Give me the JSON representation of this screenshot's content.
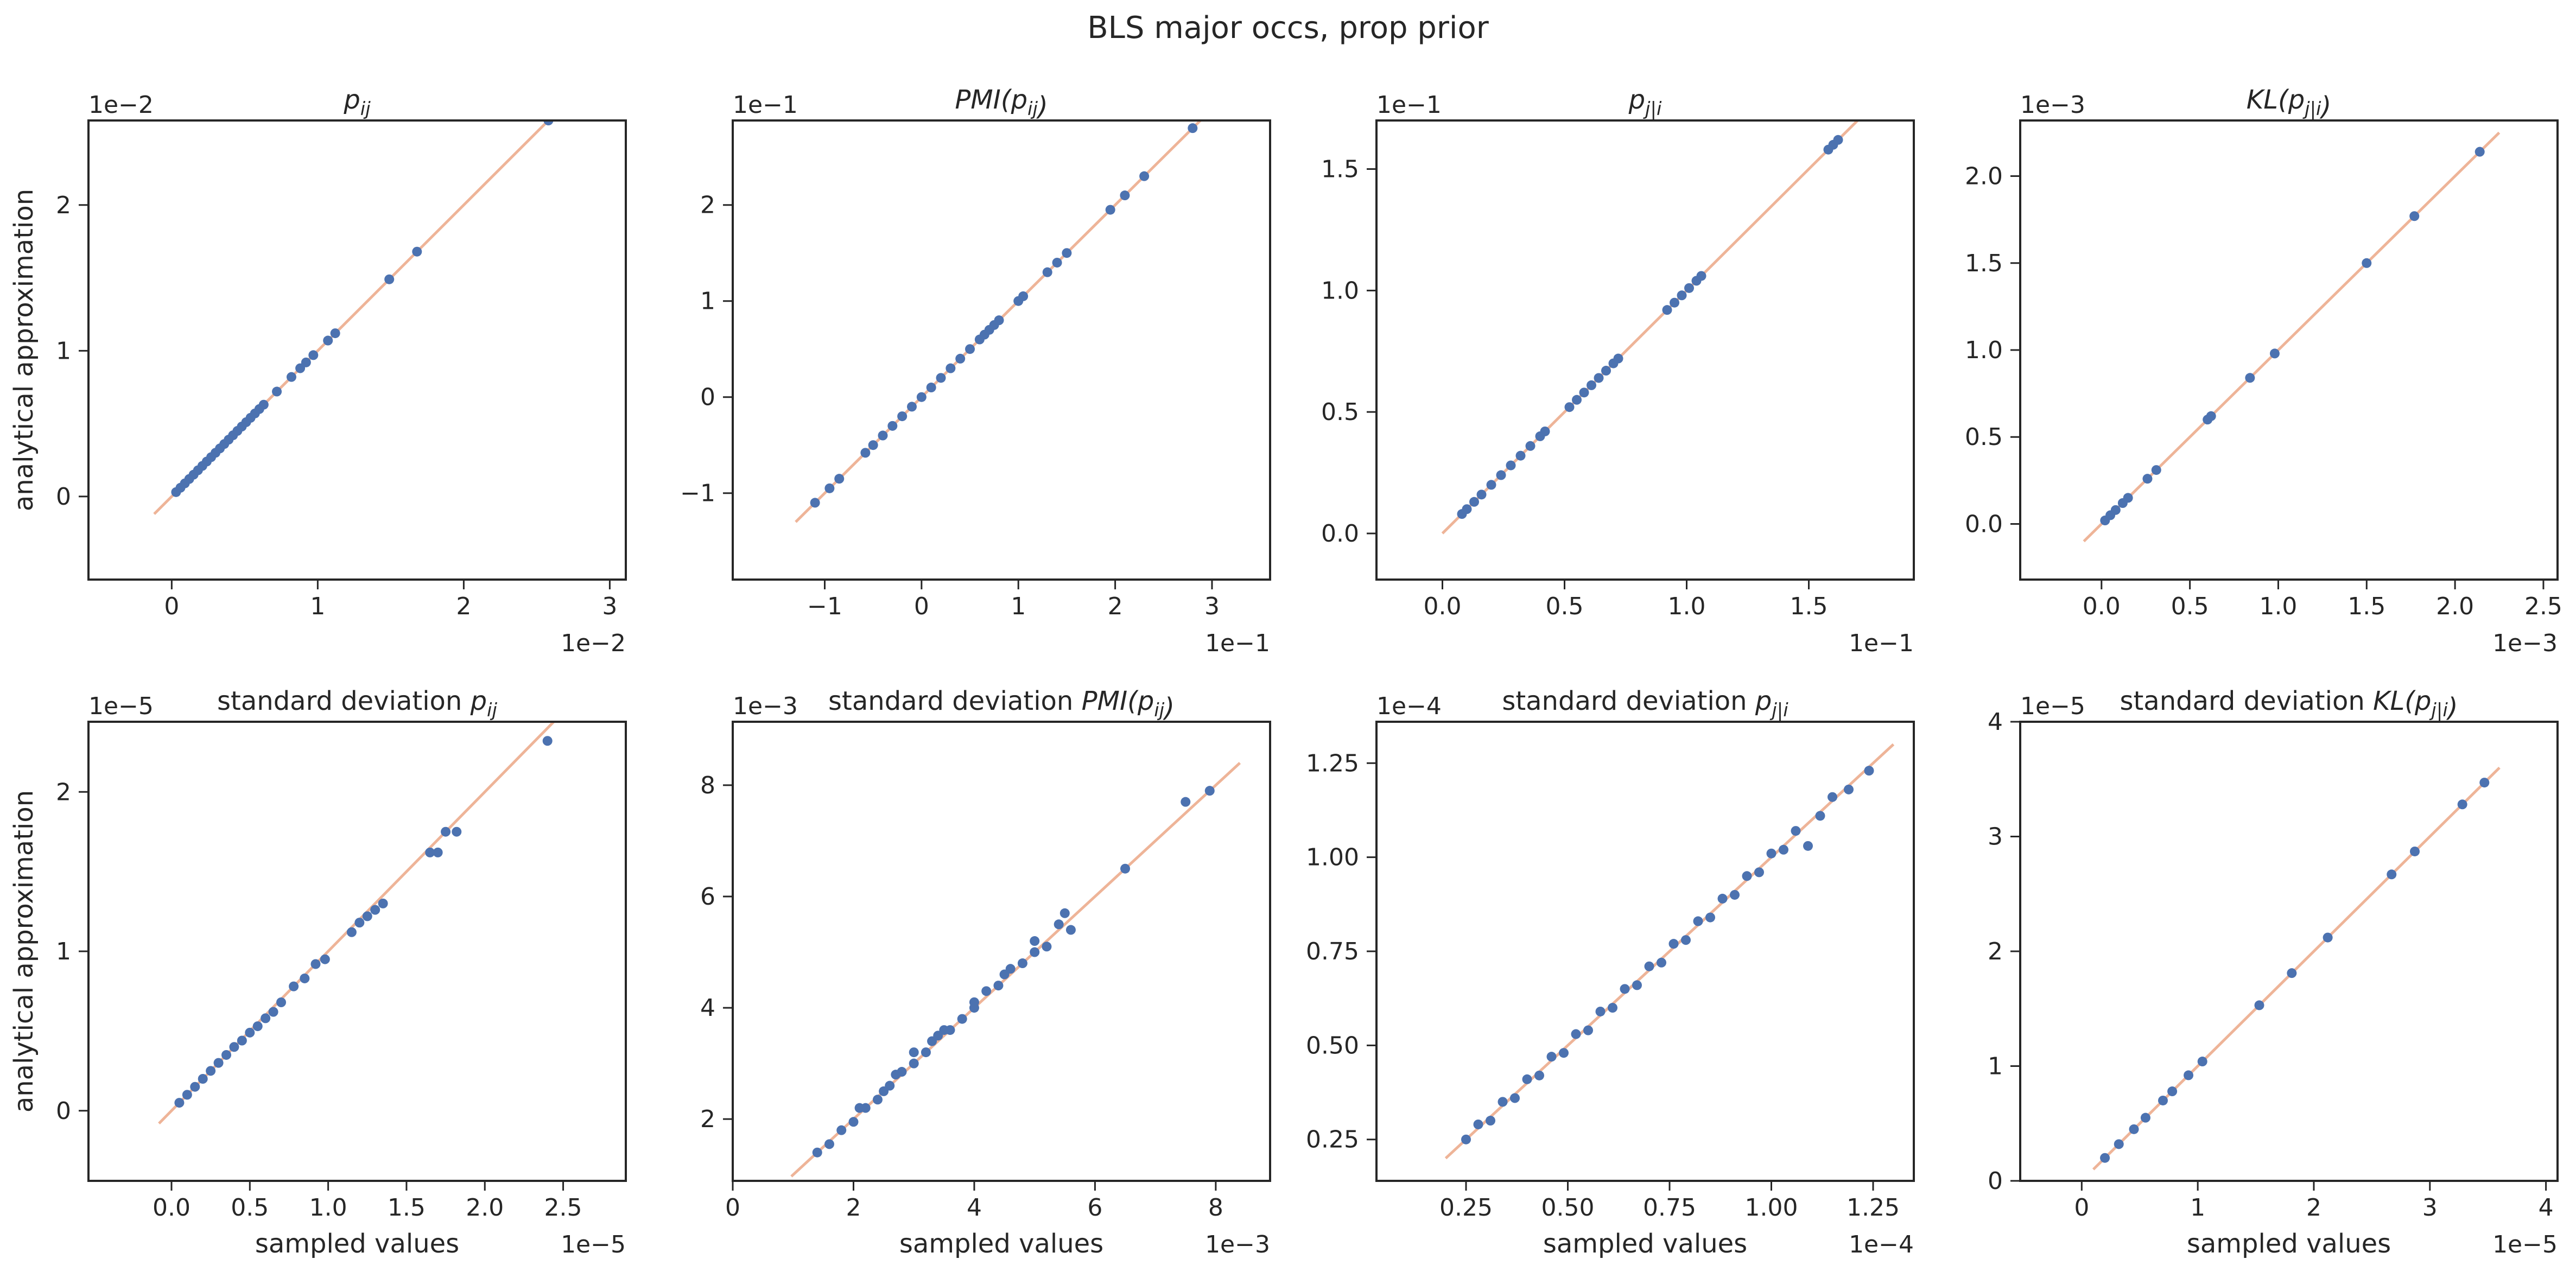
{
  "figure": {
    "suptitle": "BLS major occs, prop prior",
    "ylabel": "analytical approximation",
    "xlabel": "sampled values"
  },
  "colors": {
    "points": "#4c72b0",
    "identity_line": "#eeb498",
    "frame": "#262626"
  },
  "chart_data": [
    {
      "type": "scatter",
      "row": 0,
      "col": 0,
      "title": "p_ij",
      "title_parts": [
        [
          "p",
          ""
        ],
        [
          "ij",
          "sub"
        ]
      ],
      "xlabel": "",
      "ylabel": "analytical approximation",
      "x_scale_label": "1e−2",
      "y_scale_label": "1e−2",
      "xlim": [
        -0.0057,
        0.0311
      ],
      "ylim": [
        -0.0057,
        0.0258
      ],
      "xticks": [
        0,
        0.01,
        0.02,
        0.03
      ],
      "xticklabels": [
        "0",
        "1",
        "2",
        "3"
      ],
      "yticks": [
        0,
        0.01,
        0.02
      ],
      "yticklabels": [
        "0",
        "1",
        "2"
      ],
      "identity_line": [
        -0.0012,
        0.0258
      ],
      "x": [
        0.0003,
        0.0006,
        0.0009,
        0.0012,
        0.0015,
        0.0018,
        0.0021,
        0.0024,
        0.0027,
        0.003,
        0.0033,
        0.0036,
        0.0039,
        0.0042,
        0.0045,
        0.0048,
        0.0051,
        0.0054,
        0.0057,
        0.006,
        0.0063,
        0.0072,
        0.0082,
        0.0088,
        0.0092,
        0.0097,
        0.0107,
        0.0112,
        0.0149,
        0.0168,
        0.0258
      ],
      "y": [
        0.0003,
        0.0006,
        0.0009,
        0.0012,
        0.0015,
        0.0018,
        0.0021,
        0.0024,
        0.0027,
        0.003,
        0.0033,
        0.0036,
        0.0039,
        0.0042,
        0.0045,
        0.0048,
        0.0051,
        0.0054,
        0.0057,
        0.006,
        0.0063,
        0.0072,
        0.0082,
        0.0088,
        0.0092,
        0.0097,
        0.0107,
        0.0112,
        0.0149,
        0.0168,
        0.0258
      ]
    },
    {
      "type": "scatter",
      "row": 0,
      "col": 1,
      "title": "PMI(p_ij)",
      "title_parts": [
        [
          "PMI(",
          "it"
        ],
        [
          "p",
          "it"
        ],
        [
          "ij",
          "sub"
        ],
        [
          ")",
          "it"
        ]
      ],
      "xlabel": "",
      "ylabel": "",
      "x_scale_label": "1e−1",
      "y_scale_label": "1e−1",
      "xlim": [
        -0.195,
        0.36
      ],
      "ylim": [
        -0.19,
        0.288
      ],
      "xticks": [
        -0.1,
        0,
        0.1,
        0.2,
        0.3
      ],
      "xticklabels": [
        "−1",
        "0",
        "1",
        "2",
        "3"
      ],
      "yticks": [
        -0.1,
        0,
        0.1,
        0.2
      ],
      "yticklabels": [
        "−1",
        "0",
        "1",
        "2"
      ],
      "identity_line": [
        -0.13,
        0.29
      ],
      "x": [
        -0.11,
        -0.095,
        -0.085,
        -0.058,
        -0.05,
        -0.04,
        -0.03,
        -0.02,
        -0.01,
        0,
        0.01,
        0.02,
        0.03,
        0.04,
        0.05,
        0.06,
        0.065,
        0.07,
        0.075,
        0.08,
        0.1,
        0.105,
        0.13,
        0.14,
        0.15,
        0.195,
        0.21,
        0.23,
        0.28
      ],
      "y": [
        -0.11,
        -0.095,
        -0.085,
        -0.058,
        -0.05,
        -0.04,
        -0.03,
        -0.02,
        -0.01,
        0,
        0.01,
        0.02,
        0.03,
        0.04,
        0.05,
        0.06,
        0.065,
        0.07,
        0.075,
        0.08,
        0.1,
        0.105,
        0.13,
        0.14,
        0.15,
        0.195,
        0.21,
        0.23,
        0.28
      ]
    },
    {
      "type": "scatter",
      "row": 0,
      "col": 2,
      "title": "p_j|i",
      "title_parts": [
        [
          "p",
          ""
        ],
        [
          "j|i",
          "sub"
        ]
      ],
      "xlabel": "",
      "ylabel": "",
      "x_scale_label": "1e−1",
      "y_scale_label": "1e−1",
      "xlim": [
        -0.027,
        0.193
      ],
      "ylim": [
        -0.019,
        0.17
      ],
      "xticks": [
        0,
        0.05,
        0.1,
        0.15
      ],
      "xticklabels": [
        "0.0",
        "0.5",
        "1.0",
        "1.5"
      ],
      "yticks": [
        0,
        0.05,
        0.1,
        0.15
      ],
      "yticklabels": [
        "0.0",
        "0.5",
        "1.0",
        "1.5"
      ],
      "identity_line": [
        0,
        0.17
      ],
      "x": [
        0.008,
        0.01,
        0.013,
        0.016,
        0.02,
        0.024,
        0.028,
        0.032,
        0.036,
        0.04,
        0.042,
        0.052,
        0.055,
        0.058,
        0.061,
        0.064,
        0.067,
        0.07,
        0.072,
        0.092,
        0.095,
        0.098,
        0.101,
        0.104,
        0.106,
        0.158,
        0.16,
        0.162
      ],
      "y": [
        0.008,
        0.01,
        0.013,
        0.016,
        0.02,
        0.024,
        0.028,
        0.032,
        0.036,
        0.04,
        0.042,
        0.052,
        0.055,
        0.058,
        0.061,
        0.064,
        0.067,
        0.07,
        0.072,
        0.092,
        0.095,
        0.098,
        0.101,
        0.104,
        0.106,
        0.158,
        0.16,
        0.162
      ]
    },
    {
      "type": "scatter",
      "row": 0,
      "col": 3,
      "title": "KL(p_j|i)",
      "title_parts": [
        [
          "KL(",
          "it"
        ],
        [
          "p",
          "it"
        ],
        [
          "j|i",
          "sub"
        ],
        [
          ")",
          "it"
        ]
      ],
      "xlabel": "",
      "ylabel": "",
      "x_scale_label": "1e−3",
      "y_scale_label": "1e−3",
      "xlim": [
        -0.00046,
        0.00258
      ],
      "ylim": [
        -0.00032,
        0.00232
      ],
      "xticks": [
        0,
        0.0005,
        0.001,
        0.0015,
        0.002,
        0.0025
      ],
      "xticklabels": [
        "0.0",
        "0.5",
        "1.0",
        "1.5",
        "2.0",
        "2.5"
      ],
      "yticks": [
        0,
        0.0005,
        0.001,
        0.0015,
        0.002
      ],
      "yticklabels": [
        "0.0",
        "0.5",
        "1.0",
        "1.5",
        "2.0"
      ],
      "identity_line": [
        -0.0001,
        0.00225
      ],
      "x": [
        2e-05,
        5e-05,
        8e-05,
        0.00012,
        0.00015,
        0.00026,
        0.00031,
        0.0006,
        0.00062,
        0.00084,
        0.00098,
        0.0015,
        0.00177,
        0.00214
      ],
      "y": [
        2e-05,
        5e-05,
        8e-05,
        0.00012,
        0.00015,
        0.00026,
        0.00031,
        0.0006,
        0.00062,
        0.00084,
        0.00098,
        0.0015,
        0.00177,
        0.00214
      ]
    },
    {
      "type": "scatter",
      "row": 1,
      "col": 0,
      "title": "standard deviation p_ij",
      "title_parts": [
        [
          "standard deviation ",
          "plain"
        ],
        [
          "p",
          "it"
        ],
        [
          "ij",
          "sub"
        ]
      ],
      "xlabel": "sampled values",
      "ylabel": "analytical approximation",
      "x_scale_label": "1e−5",
      "y_scale_label": "1e−5",
      "xlim": [
        -5.3e-06,
        2.9e-05
      ],
      "ylim": [
        -4.4e-06,
        2.44e-05
      ],
      "xticks": [
        0,
        5e-06,
        1e-05,
        1.5e-05,
        2e-05,
        2.5e-05
      ],
      "xticklabels": [
        "0.0",
        "0.5",
        "1.0",
        "1.5",
        "2.0",
        "2.5"
      ],
      "yticks": [
        0,
        1e-05,
        2e-05
      ],
      "yticklabels": [
        "0",
        "1",
        "2"
      ],
      "identity_line": [
        -8e-07,
        2.44e-05
      ],
      "x": [
        5e-07,
        1e-06,
        1.5e-06,
        2e-06,
        2.5e-06,
        3e-06,
        3.5e-06,
        4e-06,
        4.5e-06,
        5e-06,
        5.5e-06,
        6e-06,
        6.5e-06,
        7e-06,
        7.8e-06,
        8.5e-06,
        9.2e-06,
        9.8e-06,
        1.15e-05,
        1.2e-05,
        1.25e-05,
        1.3e-05,
        1.35e-05,
        1.65e-05,
        1.7e-05,
        1.75e-05,
        1.82e-05,
        2.4e-05
      ],
      "y": [
        5e-07,
        1e-06,
        1.5e-06,
        2e-06,
        2.5e-06,
        3e-06,
        3.5e-06,
        4e-06,
        4.4e-06,
        4.9e-06,
        5.3e-06,
        5.8e-06,
        6.2e-06,
        6.8e-06,
        7.8e-06,
        8.3e-06,
        9.2e-06,
        9.5e-06,
        1.12e-05,
        1.18e-05,
        1.22e-05,
        1.26e-05,
        1.3e-05,
        1.62e-05,
        1.62e-05,
        1.75e-05,
        1.75e-05,
        2.32e-05
      ]
    },
    {
      "type": "scatter",
      "row": 1,
      "col": 1,
      "title": "standard deviation PMI(p_ij)",
      "title_parts": [
        [
          "standard deviation ",
          "plain"
        ],
        [
          "PMI(",
          "it"
        ],
        [
          "p",
          "it"
        ],
        [
          "ij",
          "sub"
        ],
        [
          ")",
          "it"
        ]
      ],
      "xlabel": "sampled values",
      "ylabel": "",
      "x_scale_label": "1e−3",
      "y_scale_label": "1e−3",
      "xlim": [
        0,
        0.0089
      ],
      "ylim": [
        0.00089,
        0.00914
      ],
      "xticks": [
        0,
        0.002,
        0.004,
        0.006,
        0.008
      ],
      "xticklabels": [
        "0",
        "2",
        "4",
        "6",
        "8"
      ],
      "yticks": [
        0.002,
        0.004,
        0.006,
        0.008
      ],
      "yticklabels": [
        "2",
        "4",
        "6",
        "8"
      ],
      "identity_line": [
        0.00097,
        0.0084
      ],
      "x": [
        0.0014,
        0.0016,
        0.0018,
        0.002,
        0.0022,
        0.0024,
        0.0026,
        0.0028,
        0.003,
        0.0032,
        0.0034,
        0.0036,
        0.0038,
        0.004,
        0.0042,
        0.0044,
        0.0046,
        0.0048,
        0.005,
        0.0052,
        0.0054,
        0.0055,
        0.0056,
        0.0065,
        0.0075,
        0.0079,
        0.0021,
        0.0025,
        0.003,
        0.0035,
        0.004,
        0.0045,
        0.005,
        0.0027,
        0.0033
      ],
      "y": [
        0.0014,
        0.00155,
        0.0018,
        0.00195,
        0.0022,
        0.00235,
        0.0026,
        0.00285,
        0.003,
        0.0032,
        0.0035,
        0.0036,
        0.0038,
        0.004,
        0.0043,
        0.0044,
        0.0047,
        0.0048,
        0.005,
        0.0051,
        0.0055,
        0.0057,
        0.0054,
        0.0065,
        0.0077,
        0.0079,
        0.0022,
        0.0025,
        0.0032,
        0.0036,
        0.0041,
        0.0046,
        0.0052,
        0.0028,
        0.0034
      ]
    },
    {
      "type": "scatter",
      "row": 1,
      "col": 2,
      "title": "standard deviation p_j|i",
      "title_parts": [
        [
          "standard deviation ",
          "plain"
        ],
        [
          "p",
          "it"
        ],
        [
          "j|i",
          "sub"
        ]
      ],
      "xlabel": "sampled values",
      "ylabel": "",
      "x_scale_label": "1e−4",
      "y_scale_label": "1e−4",
      "xlim": [
        3e-07,
        1.35e-05
      ],
      "ylim": [
        1.4e-06,
        1.36e-05
      ],
      "xticks": [
        2.5e-06,
        5e-06,
        7.5e-06,
        1e-05,
        1.25e-05
      ],
      "xticklabels": [
        "0.25",
        "0.50",
        "0.75",
        "1.00",
        "1.25"
      ],
      "yticks": [
        2.5e-06,
        5e-06,
        7.5e-06,
        1e-05,
        1.25e-05
      ],
      "yticklabels": [
        "0.25",
        "0.50",
        "0.75",
        "1.00",
        "1.25"
      ],
      "identity_line": [
        2e-06,
        1.3e-05
      ],
      "x": [
        2.5e-06,
        2.8e-06,
        3.1e-06,
        3.4e-06,
        3.7e-06,
        4e-06,
        4.3e-06,
        4.6e-06,
        4.9e-06,
        5.2e-06,
        5.5e-06,
        5.8e-06,
        6.1e-06,
        6.4e-06,
        6.7e-06,
        7e-06,
        7.3e-06,
        7.6e-06,
        7.9e-06,
        8.2e-06,
        8.5e-06,
        8.8e-06,
        9.1e-06,
        9.4e-06,
        9.7e-06,
        1e-05,
        1.03e-05,
        1.06e-05,
        1.09e-05,
        1.12e-05,
        1.15e-05,
        1.19e-05,
        1.24e-05
      ],
      "y": [
        2.5e-06,
        2.9e-06,
        3e-06,
        3.5e-06,
        3.6e-06,
        4.1e-06,
        4.2e-06,
        4.7e-06,
        4.8e-06,
        5.3e-06,
        5.4e-06,
        5.9e-06,
        6e-06,
        6.5e-06,
        6.6e-06,
        7.1e-06,
        7.2e-06,
        7.7e-06,
        7.8e-06,
        8.3e-06,
        8.4e-06,
        8.9e-06,
        9e-06,
        9.5e-06,
        9.6e-06,
        1.01e-05,
        1.02e-05,
        1.07e-05,
        1.03e-05,
        1.11e-05,
        1.16e-05,
        1.18e-05,
        1.23e-05
      ]
    },
    {
      "type": "scatter",
      "row": 1,
      "col": 3,
      "title": "standard deviation KL(p_j|i)",
      "title_parts": [
        [
          "standard deviation ",
          "plain"
        ],
        [
          "KL(",
          "it"
        ],
        [
          "p",
          "it"
        ],
        [
          "j|i",
          "sub"
        ],
        [
          ")",
          "it"
        ]
      ],
      "xlabel": "sampled values",
      "ylabel": "",
      "x_scale_label": "1e−5",
      "y_scale_label": "1e−5",
      "xlim": [
        -5.3e-06,
        4.1e-05
      ],
      "ylim": [
        0,
        4e-05
      ],
      "xticks": [
        0,
        1e-05,
        2e-05,
        3e-05,
        4e-05
      ],
      "xticklabels": [
        "0",
        "1",
        "2",
        "3",
        "4"
      ],
      "yticks": [
        0,
        1e-05,
        2e-05,
        3e-05,
        4e-05
      ],
      "yticklabels": [
        "0",
        "1",
        "2",
        "3",
        "4"
      ],
      "identity_line": [
        1e-06,
        3.6e-05
      ],
      "x": [
        2e-06,
        3.2e-06,
        4.5e-06,
        5.5e-06,
        7e-06,
        7.8e-06,
        9.2e-06,
        1.04e-05,
        1.53e-05,
        1.81e-05,
        2.12e-05,
        2.67e-05,
        2.87e-05,
        3.28e-05,
        3.47e-05
      ],
      "y": [
        2e-06,
        3.2e-06,
        4.5e-06,
        5.5e-06,
        7e-06,
        7.8e-06,
        9.2e-06,
        1.04e-05,
        1.53e-05,
        1.81e-05,
        2.12e-05,
        2.67e-05,
        2.87e-05,
        3.28e-05,
        3.47e-05
      ]
    }
  ]
}
